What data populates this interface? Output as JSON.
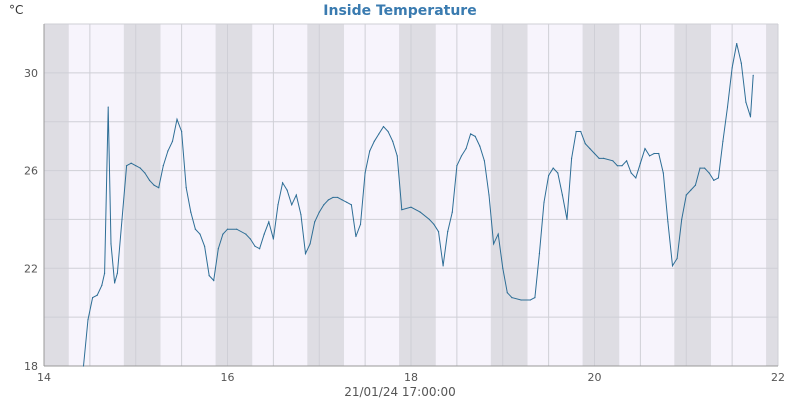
{
  "chart_data": {
    "type": "line",
    "title": "Inside Temperature",
    "ylabel": "°C",
    "xlabel": "21/01/24 17:00:00",
    "xlim": [
      14,
      22
    ],
    "ylim": [
      18,
      32
    ],
    "x_ticks": [
      14,
      16,
      18,
      20,
      22
    ],
    "y_ticks": [
      18,
      22,
      26,
      30
    ],
    "grid": true,
    "legend": "none",
    "night_bands": [
      [
        14.0,
        14.27
      ],
      [
        14.87,
        15.27
      ],
      [
        15.87,
        16.27
      ],
      [
        16.87,
        17.27
      ],
      [
        17.87,
        18.27
      ],
      [
        18.87,
        19.27
      ],
      [
        19.87,
        20.27
      ],
      [
        20.87,
        21.27
      ],
      [
        21.87,
        22.0
      ]
    ],
    "colors": {
      "line": "#2e6e96",
      "title": "#3a7bb0",
      "band": "#dedde3",
      "plot_bg": "#f7f4fc",
      "grid": "#cfcfd6",
      "axis": "#999999"
    },
    "series": [
      {
        "x": [
          14.43,
          14.48,
          14.53,
          14.58,
          14.63,
          14.66,
          14.7,
          14.73,
          14.77,
          14.8,
          14.85,
          14.9,
          14.95,
          15.0,
          15.05,
          15.1,
          15.15,
          15.2,
          15.25,
          15.3,
          15.35,
          15.4,
          15.45,
          15.5,
          15.55,
          15.6,
          15.65,
          15.7,
          15.75,
          15.8,
          15.85,
          15.9,
          15.95,
          16.0,
          16.1,
          16.2,
          16.25,
          16.3,
          16.35,
          16.4,
          16.45,
          16.5,
          16.55,
          16.6,
          16.65,
          16.7,
          16.75,
          16.8,
          16.85,
          16.9,
          16.95,
          17.0,
          17.05,
          17.1,
          17.15,
          17.2,
          17.25,
          17.3,
          17.35,
          17.4,
          17.45,
          17.5,
          17.55,
          17.6,
          17.65,
          17.7,
          17.75,
          17.8,
          17.85,
          17.9,
          18.0,
          18.1,
          18.2,
          18.25,
          18.3,
          18.35,
          18.4,
          18.45,
          18.5,
          18.55,
          18.6,
          18.65,
          18.7,
          18.75,
          18.8,
          18.85,
          18.9,
          18.95,
          19.0,
          19.05,
          19.1,
          19.2,
          19.3,
          19.35,
          19.4,
          19.45,
          19.5,
          19.55,
          19.6,
          19.65,
          19.7,
          19.75,
          19.8,
          19.85,
          19.9,
          19.95,
          20.0,
          20.05,
          20.1,
          20.2,
          20.25,
          20.3,
          20.35,
          20.4,
          20.45,
          20.5,
          20.55,
          20.6,
          20.65,
          20.7,
          20.75,
          20.8,
          20.85,
          20.9,
          20.95,
          21.0,
          21.05,
          21.1,
          21.15,
          21.2,
          21.25,
          21.3,
          21.35,
          21.4,
          21.45,
          21.5,
          21.55,
          21.6,
          21.65,
          21.7,
          21.73
        ],
        "values": [
          18.0,
          19.9,
          20.8,
          20.9,
          21.3,
          21.8,
          28.6,
          23.0,
          21.4,
          21.8,
          24.0,
          26.2,
          26.3,
          26.2,
          26.1,
          25.9,
          25.6,
          25.4,
          25.3,
          26.2,
          26.8,
          27.2,
          28.1,
          27.6,
          25.3,
          24.3,
          23.6,
          23.4,
          22.9,
          21.7,
          21.5,
          22.8,
          23.4,
          23.6,
          23.6,
          23.4,
          23.2,
          22.9,
          22.8,
          23.4,
          23.9,
          23.2,
          24.6,
          25.5,
          25.2,
          24.6,
          25.0,
          24.2,
          22.6,
          23.0,
          23.9,
          24.3,
          24.6,
          24.8,
          24.9,
          24.9,
          24.8,
          24.7,
          24.6,
          23.3,
          23.8,
          25.9,
          26.8,
          27.2,
          27.5,
          27.8,
          27.6,
          27.2,
          26.6,
          24.4,
          24.5,
          24.3,
          24.0,
          23.8,
          23.5,
          22.1,
          23.5,
          24.3,
          26.2,
          26.6,
          26.9,
          27.5,
          27.4,
          27.0,
          26.4,
          25.0,
          23.0,
          23.4,
          22.0,
          21.0,
          20.8,
          20.7,
          20.7,
          20.8,
          22.6,
          24.7,
          25.8,
          26.1,
          25.9,
          25.0,
          24.0,
          26.5,
          27.6,
          27.6,
          27.1,
          26.9,
          26.7,
          26.5,
          26.5,
          26.4,
          26.2,
          26.2,
          26.4,
          25.9,
          25.7,
          26.3,
          26.9,
          26.6,
          26.7,
          26.7,
          25.9,
          23.9,
          22.1,
          22.4,
          24.0,
          25.0,
          25.2,
          25.4,
          26.1,
          26.1,
          25.9,
          25.6,
          25.7,
          27.2,
          28.6,
          30.2,
          31.2,
          30.4,
          28.8,
          28.2,
          29.9
        ]
      }
    ]
  }
}
